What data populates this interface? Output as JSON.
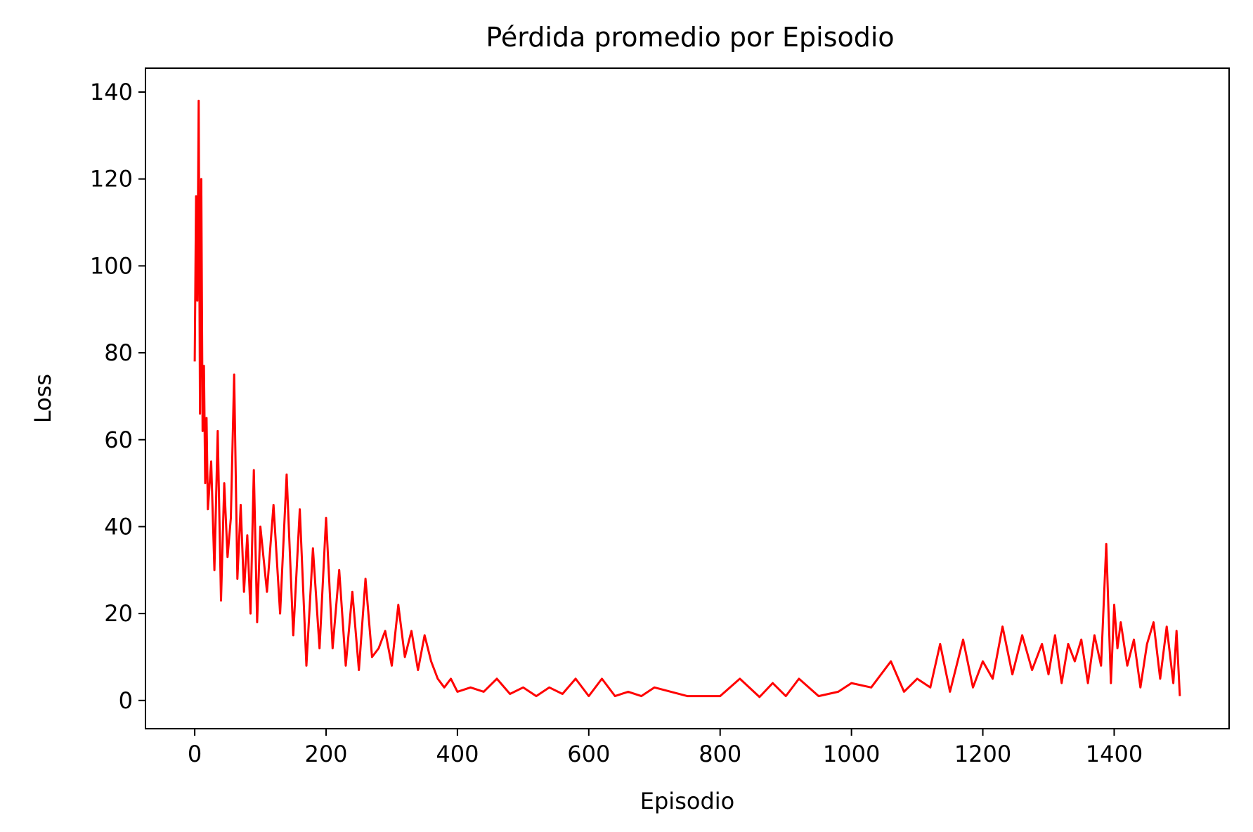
{
  "chart_data": {
    "type": "line",
    "title": "Pérdida promedio por Episodio",
    "xlabel": "Episodio",
    "ylabel": "Loss",
    "xlim": [
      -75,
      1575
    ],
    "ylim": [
      -6.5,
      145.5
    ],
    "xticks": [
      0,
      200,
      400,
      600,
      800,
      1000,
      1200,
      1400
    ],
    "yticks": [
      0,
      20,
      40,
      60,
      80,
      100,
      120,
      140
    ],
    "grid": false,
    "legend": "none",
    "series": [
      {
        "color": "#ff0000",
        "x": [
          0,
          2,
          4,
          6,
          8,
          10,
          12,
          14,
          16,
          18,
          20,
          25,
          30,
          35,
          40,
          45,
          50,
          55,
          60,
          65,
          70,
          75,
          80,
          85,
          90,
          95,
          100,
          110,
          120,
          130,
          140,
          150,
          160,
          170,
          180,
          190,
          200,
          210,
          220,
          230,
          240,
          250,
          260,
          270,
          280,
          290,
          300,
          310,
          320,
          330,
          340,
          350,
          360,
          370,
          380,
          390,
          400,
          420,
          440,
          460,
          480,
          500,
          520,
          540,
          560,
          580,
          600,
          620,
          640,
          660,
          680,
          700,
          750,
          800,
          830,
          860,
          880,
          900,
          920,
          950,
          980,
          1000,
          1030,
          1060,
          1080,
          1100,
          1120,
          1135,
          1150,
          1170,
          1185,
          1200,
          1215,
          1230,
          1245,
          1260,
          1275,
          1290,
          1300,
          1310,
          1320,
          1330,
          1340,
          1350,
          1360,
          1370,
          1380,
          1388,
          1395,
          1400,
          1405,
          1410,
          1420,
          1430,
          1440,
          1450,
          1460,
          1470,
          1480,
          1490,
          1495,
          1500
        ],
        "y": [
          78,
          116,
          92,
          138,
          66,
          120,
          62,
          77,
          50,
          65,
          44,
          55,
          30,
          62,
          23,
          50,
          33,
          42,
          75,
          28,
          45,
          25,
          38,
          20,
          53,
          18,
          40,
          25,
          45,
          20,
          52,
          15,
          44,
          8,
          35,
          12,
          42,
          12,
          30,
          8,
          25,
          7,
          28,
          10,
          12,
          16,
          8,
          22,
          10,
          16,
          7,
          15,
          9,
          5,
          3,
          5,
          2,
          3,
          2,
          5,
          1.5,
          3,
          1,
          3,
          1.5,
          5,
          1,
          5,
          1,
          2,
          1,
          3,
          1,
          1,
          5,
          0.8,
          4,
          1,
          5,
          1,
          2,
          4,
          3,
          9,
          2,
          5,
          3,
          13,
          2,
          14,
          3,
          9,
          5,
          17,
          6,
          15,
          7,
          13,
          6,
          15,
          4,
          13,
          9,
          14,
          4,
          15,
          8,
          36,
          4,
          22,
          12,
          18,
          8,
          14,
          3,
          13,
          18,
          5,
          17,
          4,
          16,
          1
        ]
      }
    ]
  }
}
